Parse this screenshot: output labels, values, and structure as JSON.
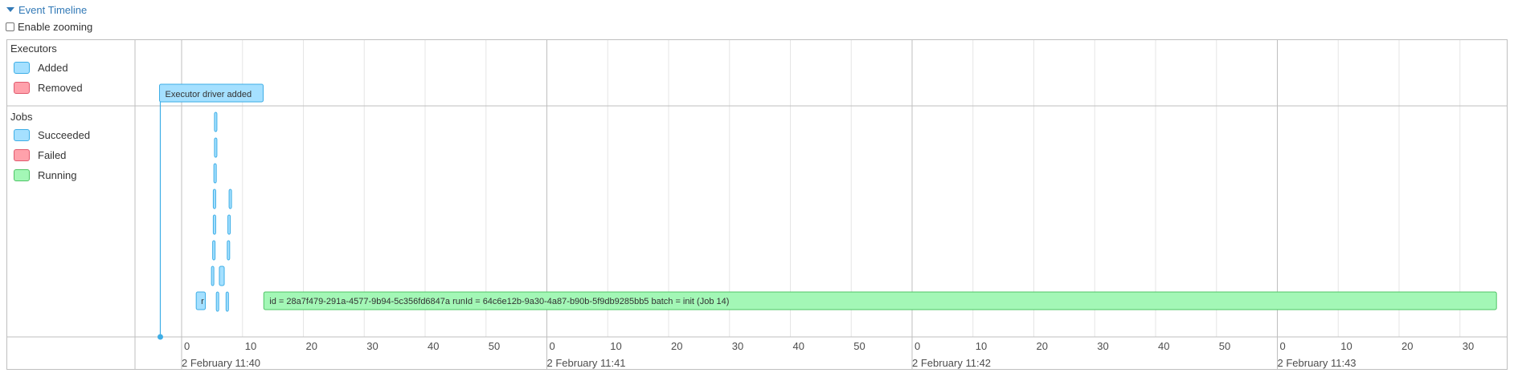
{
  "header": {
    "toggle_label": "Event Timeline",
    "zoom_label": "Enable zooming",
    "zoom_checked": false
  },
  "groups": {
    "executors": {
      "title": "Executors",
      "legend": [
        "Added",
        "Removed"
      ]
    },
    "jobs": {
      "title": "Jobs",
      "legend": [
        "Succeeded",
        "Failed",
        "Running"
      ]
    }
  },
  "colors": {
    "added_fill": "#a5e0ff",
    "added_border": "#3eaee6",
    "removed_fill": "#ffa1ab",
    "removed_border": "#e05a6e",
    "running_fill": "#a3f7b6",
    "running_border": "#4fc466",
    "grid_major": "#bfbfbf",
    "grid_minor": "#e5e5e5",
    "frame": "#bfbfbf"
  },
  "executor_events": [
    {
      "label": "Executor driver added",
      "time_s": -3.5,
      "status": "added"
    }
  ],
  "jobs": {
    "succeeded": [
      {
        "start_s": 5.4,
        "end_s": 5.6,
        "row": 0
      },
      {
        "start_s": 5.4,
        "end_s": 5.6,
        "row": 1
      },
      {
        "start_s": 5.3,
        "end_s": 5.5,
        "row": 2
      },
      {
        "start_s": 5.2,
        "end_s": 5.4,
        "row": 3
      },
      {
        "start_s": 7.8,
        "end_s": 8.0,
        "row": 3
      },
      {
        "start_s": 5.2,
        "end_s": 5.4,
        "row": 4
      },
      {
        "start_s": 7.6,
        "end_s": 7.8,
        "row": 4
      },
      {
        "start_s": 5.1,
        "end_s": 5.3,
        "row": 5
      },
      {
        "start_s": 7.5,
        "end_s": 7.7,
        "row": 5
      },
      {
        "start_s": 4.9,
        "end_s": 5.1,
        "row": 6
      },
      {
        "start_s": 6.2,
        "end_s": 7.0,
        "row": 6
      },
      {
        "start_s": 2.4,
        "end_s": 3.9,
        "row": 7,
        "label": "r"
      },
      {
        "start_s": 5.7,
        "end_s": 5.9,
        "row": 7
      },
      {
        "start_s": 7.3,
        "end_s": 7.5,
        "row": 7
      }
    ],
    "running": [
      {
        "label": "id = 28a7f479-291a-4577-9b94-5c356fd6847a runId = 64c6e12b-9a30-4a87-b90b-5f9db9285bb5 batch = init (Job 14)",
        "start_s": 13.5,
        "end_s": 216.0,
        "row": 7
      }
    ]
  },
  "axis": {
    "minor_labels": [
      "0",
      "10",
      "20",
      "30",
      "40",
      "50",
      "0",
      "10",
      "20",
      "30",
      "40",
      "50",
      "0",
      "10",
      "20",
      "30",
      "40",
      "50",
      "0",
      "10",
      "20",
      "30"
    ],
    "major_labels": [
      "2 February 11:40",
      "2 February 11:41",
      "2 February 11:42",
      "2 February 11:43"
    ]
  }
}
